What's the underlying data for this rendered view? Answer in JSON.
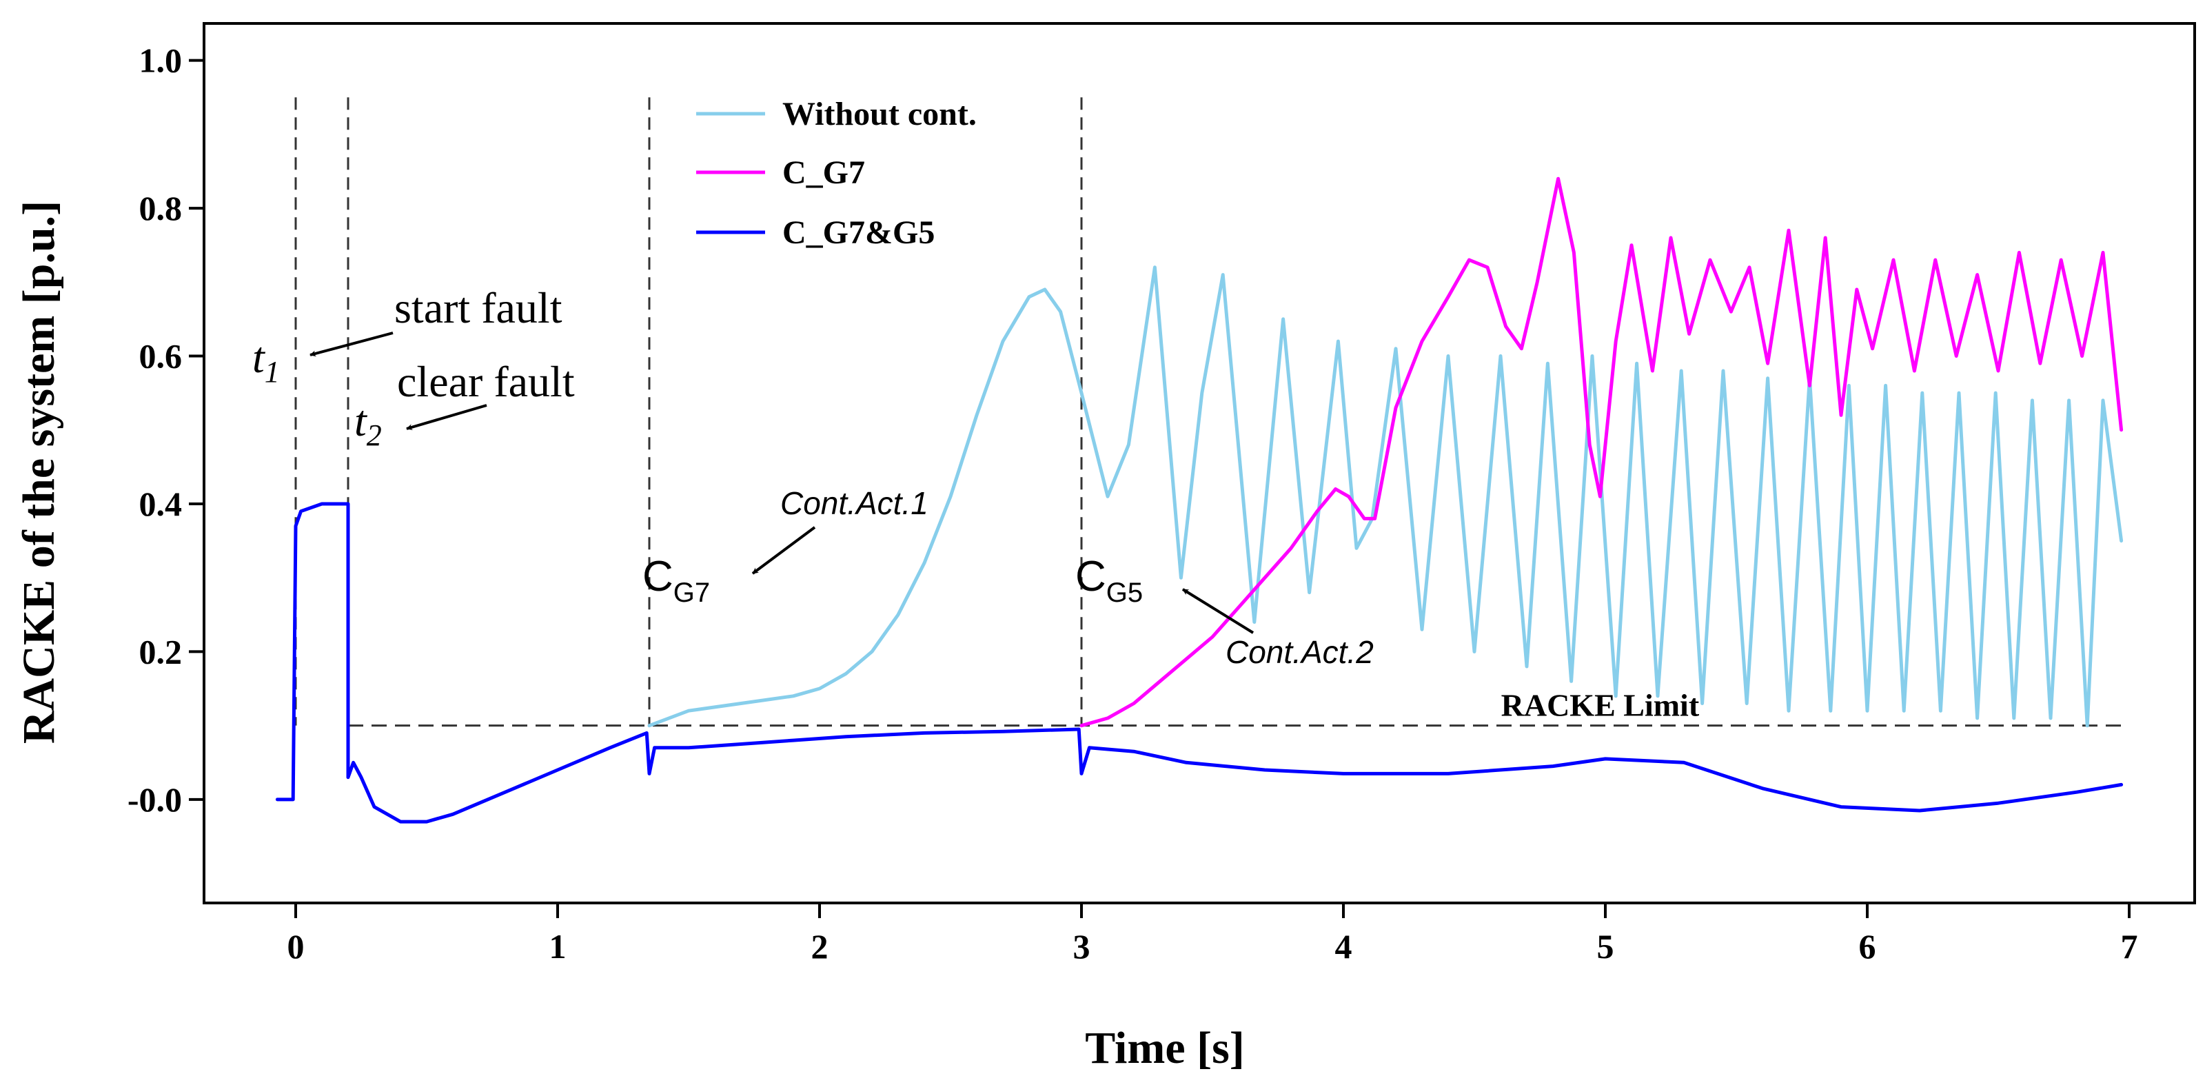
{
  "chart_data": {
    "type": "line",
    "title": "",
    "xlabel": "Time [s]",
    "ylabel": "RACKE of the system [p.u.]",
    "xlim": [
      -0.35,
      7.25
    ],
    "ylim": [
      -0.14,
      1.05
    ],
    "xticks": [
      "0",
      "1",
      "2",
      "3",
      "4",
      "5",
      "6",
      "7"
    ],
    "yticks": [
      "-0.0",
      "0.2",
      "0.4",
      "0.6",
      "0.8",
      "1.0"
    ],
    "legend_position": "top-center",
    "series": [
      {
        "name": "Without cont.",
        "color": "#87CEEB",
        "x": [
          1.35,
          1.5,
          1.7,
          1.9,
          2.0,
          2.1,
          2.2,
          2.3,
          2.4,
          2.5,
          2.6,
          2.7,
          2.8,
          2.86,
          2.92,
          3.0,
          3.1,
          3.18,
          3.28,
          3.38,
          3.46,
          3.54,
          3.66,
          3.77,
          3.87,
          3.98,
          4.05,
          4.11,
          4.2,
          4.3,
          4.4,
          4.5,
          4.6,
          4.7,
          4.78,
          4.87,
          4.95,
          5.04,
          5.12,
          5.2,
          5.29,
          5.37,
          5.45,
          5.54,
          5.62,
          5.7,
          5.78,
          5.86,
          5.93,
          6.0,
          6.07,
          6.14,
          6.21,
          6.28,
          6.35,
          6.42,
          6.49,
          6.56,
          6.63,
          6.7,
          6.77,
          6.84,
          6.9,
          6.97
        ],
        "values": [
          0.1,
          0.12,
          0.13,
          0.14,
          0.15,
          0.17,
          0.2,
          0.25,
          0.32,
          0.41,
          0.52,
          0.62,
          0.68,
          0.69,
          0.66,
          0.55,
          0.41,
          0.48,
          0.72,
          0.3,
          0.55,
          0.71,
          0.24,
          0.65,
          0.28,
          0.62,
          0.34,
          0.38,
          0.61,
          0.23,
          0.6,
          0.2,
          0.6,
          0.18,
          0.59,
          0.16,
          0.6,
          0.14,
          0.59,
          0.14,
          0.58,
          0.13,
          0.58,
          0.13,
          0.57,
          0.12,
          0.57,
          0.12,
          0.56,
          0.12,
          0.56,
          0.12,
          0.55,
          0.12,
          0.55,
          0.11,
          0.55,
          0.11,
          0.54,
          0.11,
          0.54,
          0.1,
          0.54,
          0.35
        ]
      },
      {
        "name": "C_G7",
        "color": "#FF00FF",
        "x": [
          3.0,
          3.1,
          3.2,
          3.3,
          3.4,
          3.5,
          3.6,
          3.7,
          3.8,
          3.9,
          3.97,
          4.02,
          4.08,
          4.12,
          4.2,
          4.3,
          4.4,
          4.48,
          4.55,
          4.62,
          4.68,
          4.74,
          4.82,
          4.88,
          4.94,
          4.98,
          5.04,
          5.1,
          5.18,
          5.25,
          5.32,
          5.4,
          5.48,
          5.55,
          5.62,
          5.7,
          5.78,
          5.84,
          5.9,
          5.96,
          6.02,
          6.1,
          6.18,
          6.26,
          6.34,
          6.42,
          6.5,
          6.58,
          6.66,
          6.74,
          6.82,
          6.9,
          6.97
        ],
        "values": [
          0.1,
          0.11,
          0.13,
          0.16,
          0.19,
          0.22,
          0.26,
          0.3,
          0.34,
          0.39,
          0.42,
          0.41,
          0.38,
          0.38,
          0.53,
          0.62,
          0.68,
          0.73,
          0.72,
          0.64,
          0.61,
          0.7,
          0.84,
          0.74,
          0.48,
          0.41,
          0.62,
          0.75,
          0.58,
          0.76,
          0.63,
          0.73,
          0.66,
          0.72,
          0.59,
          0.77,
          0.56,
          0.76,
          0.52,
          0.69,
          0.61,
          0.73,
          0.58,
          0.73,
          0.6,
          0.71,
          0.58,
          0.74,
          0.59,
          0.73,
          0.6,
          0.74,
          0.5
        ]
      },
      {
        "name": "C_G7&G5",
        "color": "#0000FF",
        "x": [
          -0.07,
          -0.01,
          0.0,
          0.02,
          0.1,
          0.15,
          0.2,
          0.2,
          0.22,
          0.25,
          0.3,
          0.4,
          0.5,
          0.6,
          0.8,
          1.0,
          1.2,
          1.34,
          1.35,
          1.37,
          1.5,
          1.7,
          1.9,
          2.1,
          2.4,
          2.7,
          2.99,
          3.0,
          3.03,
          3.2,
          3.4,
          3.7,
          4.0,
          4.4,
          4.8,
          5.0,
          5.3,
          5.6,
          5.9,
          6.2,
          6.5,
          6.8,
          6.97
        ],
        "values": [
          0.0,
          0.0,
          0.37,
          0.39,
          0.4,
          0.4,
          0.4,
          0.03,
          0.05,
          0.03,
          -0.01,
          -0.03,
          -0.03,
          -0.02,
          0.01,
          0.04,
          0.07,
          0.09,
          0.035,
          0.07,
          0.07,
          0.075,
          0.08,
          0.085,
          0.09,
          0.092,
          0.095,
          0.035,
          0.07,
          0.065,
          0.05,
          0.04,
          0.035,
          0.035,
          0.045,
          0.055,
          0.05,
          0.015,
          -0.01,
          -0.015,
          -0.005,
          0.01,
          0.02
        ]
      }
    ],
    "racke_limit": {
      "value": 0.1,
      "x_start": 0.2,
      "x_end": 7.0,
      "label": "RACKE Limit"
    },
    "event_lines": [
      {
        "x": 0.0,
        "y_top": 0.95
      },
      {
        "x": 0.2,
        "y_top": 0.95
      },
      {
        "x": 1.35,
        "y_top": 0.95
      },
      {
        "x": 3.0,
        "y_top": 0.95
      }
    ],
    "annotations": {
      "t1": "t",
      "t1_sub": "1",
      "t2": "t",
      "t2_sub": "2",
      "start_fault": "start fault",
      "clear_fault": "clear fault",
      "cg7_c": "C",
      "cg7_sub": "G7",
      "cg5_c": "C",
      "cg5_sub": "G5",
      "cont_act_1": "Cont.Act.1",
      "cont_act_2": "Cont.Act.2"
    }
  }
}
